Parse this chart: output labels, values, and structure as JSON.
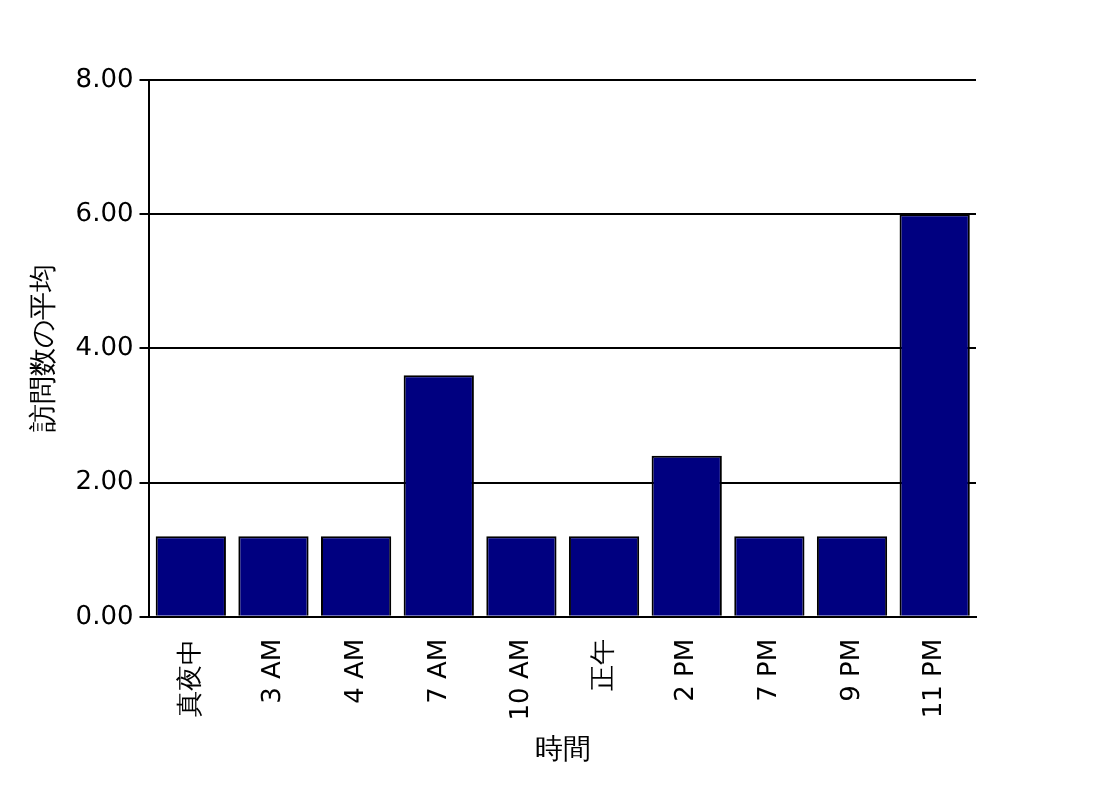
{
  "chart_data": {
    "type": "bar",
    "xlabel": "時間",
    "ylabel": "訪問数の平均",
    "categories": [
      "真夜中",
      "3 AM",
      "4 AM",
      "7 AM",
      "10 AM",
      "正午",
      "2 PM",
      "7 PM",
      "9 PM",
      "11 PM"
    ],
    "values": [
      1.2,
      1.2,
      1.2,
      3.6,
      1.2,
      1.2,
      2.4,
      1.2,
      1.2,
      6.0
    ],
    "color": "#000080",
    "ylim": [
      0,
      8
    ],
    "yticks": [
      {
        "value": 0,
        "label": "0.00"
      },
      {
        "value": 2,
        "label": "2.00"
      },
      {
        "value": 4,
        "label": "4.00"
      },
      {
        "value": 6,
        "label": "6.00"
      },
      {
        "value": 8,
        "label": "8.00"
      }
    ],
    "grid": "y",
    "legend": false
  }
}
